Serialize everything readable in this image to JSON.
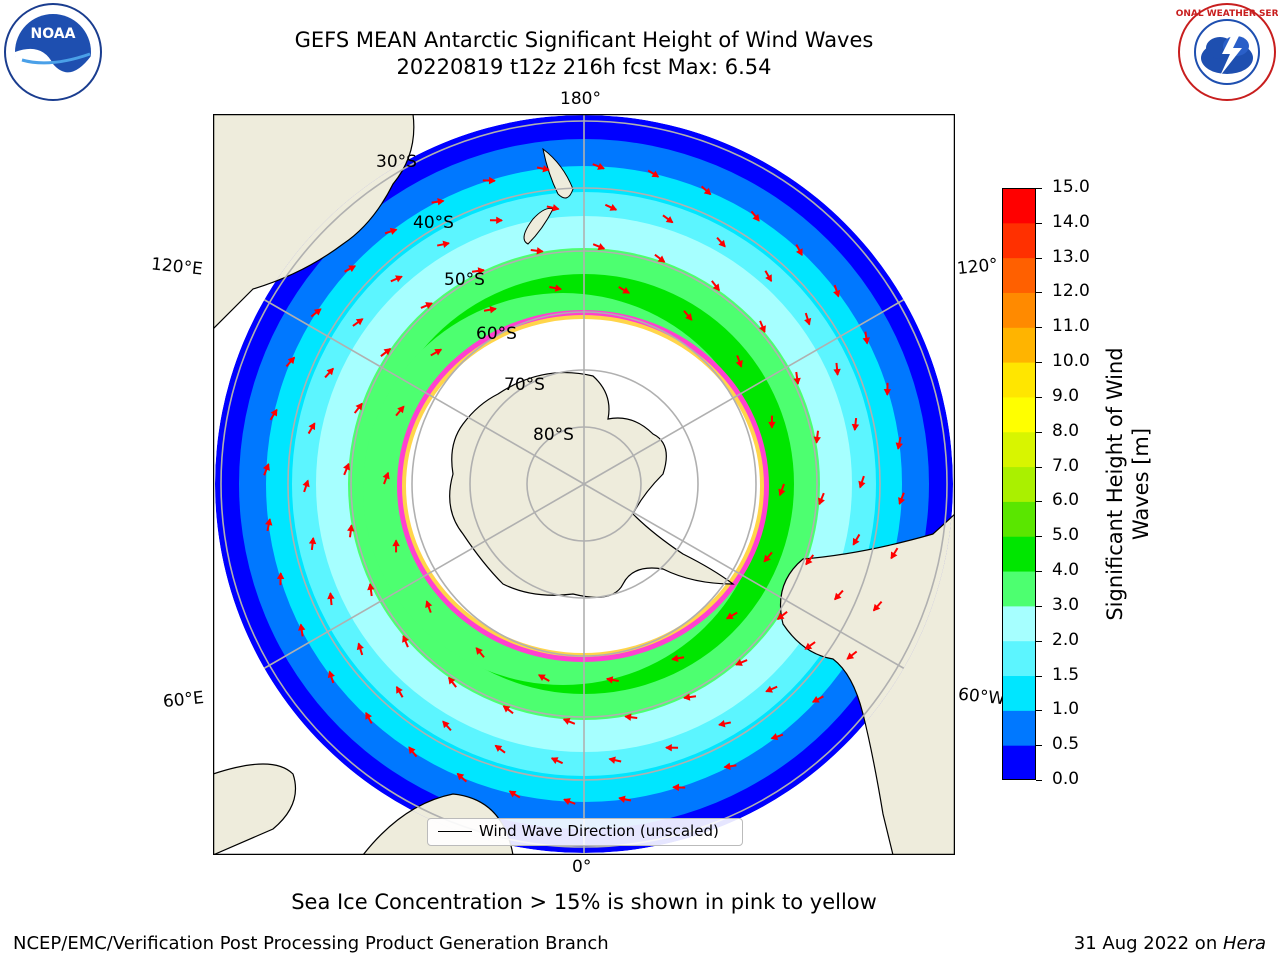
{
  "title": {
    "line1": "GEFS MEAN Antarctic Significant Height of Wind Waves",
    "line2": "20220819 t12z 216h fcst   Max: 6.54"
  },
  "logos": {
    "noara_text": "NOAA",
    "nws_text": "NATIONAL WEATHER SERVICE"
  },
  "map": {
    "meridian_labels": {
      "top": "180°",
      "bottom": "0°",
      "left_upper": "120°E",
      "left_lower": "60°E",
      "right_upper": "120°",
      "right_lower": "60°W"
    },
    "latitude_labels": [
      "30°S",
      "40°S",
      "50°S",
      "60°S",
      "70°S",
      "80°S"
    ],
    "colors": {
      "land": "#eeecdc",
      "ocean_edge": "#0000ff",
      "ice": "#ff40d0",
      "arrow": "#ff0000",
      "grid": "#b0b0b0"
    }
  },
  "legend": {
    "label": "Wind Wave Direction (unscaled)"
  },
  "colorbar": {
    "label": "Significant Height of Wind Waves [m]",
    "ticks": [
      "0.0",
      "0.5",
      "1.0",
      "1.5",
      "2.0",
      "3.0",
      "4.0",
      "5.0",
      "6.0",
      "7.0",
      "8.0",
      "9.0",
      "10.0",
      "11.0",
      "12.0",
      "13.0",
      "14.0",
      "15.0"
    ],
    "colors": [
      "#0000ff",
      "#0078ff",
      "#00e6ff",
      "#5cf5ff",
      "#a6ffff",
      "#4dff70",
      "#00e600",
      "#5ae600",
      "#aaf000",
      "#d8f500",
      "#ffff00",
      "#ffe600",
      "#ffb400",
      "#ff8a00",
      "#ff6000",
      "#ff3000",
      "#ff0000"
    ]
  },
  "subnote": "Sea Ice Concentration > 15% is shown in pink to yellow",
  "footer": {
    "left": "NCEP/EMC/Verification Post Processing Product Generation Branch",
    "date": "31 Aug 2022 on ",
    "system": "Hera"
  }
}
